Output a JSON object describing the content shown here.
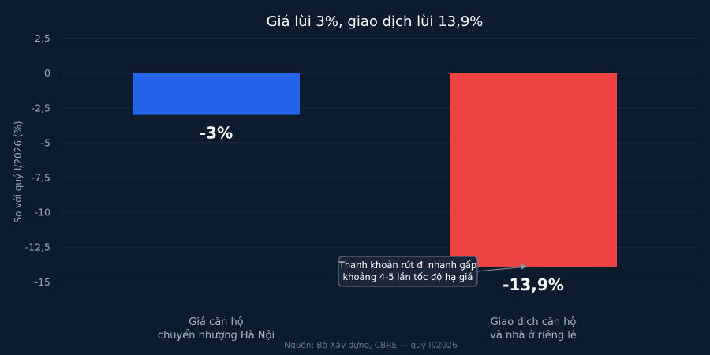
{
  "chart_data": {
    "type": "bar",
    "title": "Giá lùi 3%, giao dịch lùi 13,9%",
    "ylabel": "So với quý I/2026 (%)",
    "xlabel": "",
    "categories": [
      [
        "Giá căn hộ",
        "chuyển nhượng Hà Nội"
      ],
      [
        "Giao dịch căn hộ",
        "và nhà ở riêng lẻ"
      ]
    ],
    "values": [
      -3,
      -13.9
    ],
    "data_labels": [
      "-3%",
      "-13,9%"
    ],
    "colors": [
      "#2563eb",
      "#ef4444"
    ],
    "ylim": [
      -16,
      2.7
    ],
    "yticks": [
      2.5,
      0,
      -2.5,
      -5,
      -7.5,
      -10,
      -12.5,
      -15
    ],
    "ytick_labels": [
      "2,5",
      "0",
      "-2,5",
      "-5",
      "-7,5",
      "-10",
      "-12,5",
      "-15"
    ],
    "grid": true,
    "annotation": {
      "lines": [
        "Thanh khoản rút đi nhanh gấp",
        "khoảng 4-5 lần tốc độ hạ giá"
      ],
      "target_bar": 1
    },
    "source": "Nguồn: Bộ Xây dựng, CBRE — quý II/2026"
  }
}
